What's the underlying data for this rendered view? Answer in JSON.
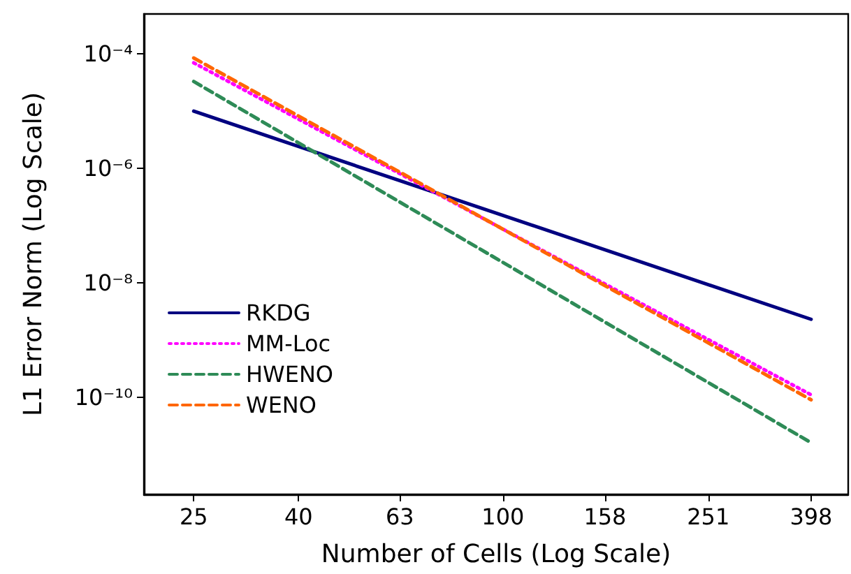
{
  "chart_data": {
    "type": "line",
    "xlabel": "Number of Cells (Log Scale)",
    "ylabel": "L1 Error Norm (Log Scale)",
    "log": "xy",
    "grid": false,
    "legend": "bottom left",
    "marker": "none",
    "xlim": [
      20,
      470
    ],
    "xticks": [
      25,
      40,
      63,
      100,
      158,
      251,
      398
    ],
    "ylim": [
      2e-12,
      0.0005
    ],
    "yticks": [
      {
        "value": 0.0001,
        "label": "10⁻⁴"
      },
      {
        "value": 1e-06,
        "label": "10⁻⁶"
      },
      {
        "value": 1e-08,
        "label": "10⁻⁸"
      },
      {
        "value": 1e-10,
        "label": "10⁻¹⁰"
      }
    ],
    "x": [
      25,
      398
    ],
    "series": [
      {
        "name": "RKDG",
        "color": "#000080",
        "line_style": "solid",
        "values": [
          1e-05,
          2.3e-09
        ]
      },
      {
        "name": "MM-Loc",
        "color": "#ff00ff",
        "line_style": "dotted",
        "values": [
          7e-05,
          1.1e-10
        ]
      },
      {
        "name": "HWENO",
        "color": "#2e8b57",
        "line_style": "dashed",
        "values": [
          3.3e-05,
          1.6e-11
        ]
      },
      {
        "name": "WENO",
        "color": "#ff6600",
        "line_style": "dashed",
        "values": [
          8.5e-05,
          9e-11
        ]
      }
    ]
  }
}
